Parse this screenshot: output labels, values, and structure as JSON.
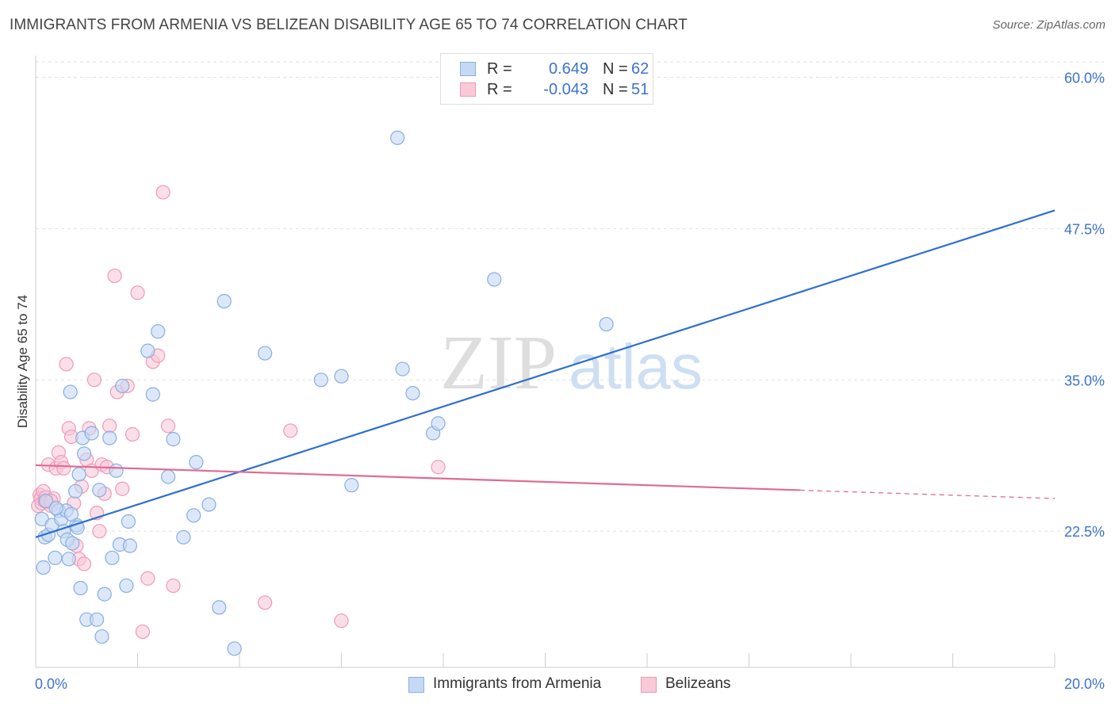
{
  "title": "IMMIGRANTS FROM ARMENIA VS BELIZEAN DISABILITY AGE 65 TO 74 CORRELATION CHART",
  "source": "Source: ZipAtlas.com",
  "watermark": {
    "zip": "ZIP",
    "atlas": "atlas"
  },
  "legend": {
    "r_label": "R =",
    "n_label": "N =",
    "series": [
      {
        "r": "0.649",
        "n": "62"
      },
      {
        "r": "-0.043",
        "n": "51"
      }
    ]
  },
  "bottom_legend": [
    "Immigrants from Armenia",
    "Belizeans"
  ],
  "colors": {
    "armenia_fill": "#c5d9f5",
    "armenia_stroke": "#89aee0",
    "armenia_line": "#2f6fce",
    "belize_fill": "#f9c9d8",
    "belize_stroke": "#ef9ab6",
    "belize_line": "#e06a94",
    "value_text": "#3d72cf",
    "grid": "#e2e2e2"
  },
  "chart_data": {
    "type": "scatter",
    "title": "IMMIGRANTS FROM ARMENIA VS BELIZEAN DISABILITY AGE 65 TO 74 CORRELATION CHART",
    "xlabel": "",
    "ylabel": "Disability Age 65 to 74",
    "xlim": [
      0,
      20
    ],
    "ylim": [
      11.25,
      61.8
    ],
    "x_tick_labels": [
      "0.0%",
      "20.0%"
    ],
    "y_ticks": [
      22.5,
      35.0,
      47.5,
      60.0
    ],
    "y_tick_labels": [
      "22.5%",
      "35.0%",
      "47.5%",
      "60.0%"
    ],
    "grid": true,
    "series": [
      {
        "name": "Immigrants from Armenia",
        "r": 0.649,
        "n": 62,
        "trend": {
          "x": [
            0,
            20
          ],
          "y": [
            22.0,
            49.0
          ],
          "dashed_from": null
        },
        "points": [
          [
            0.12,
            23.5
          ],
          [
            0.15,
            19.5
          ],
          [
            0.18,
            22.0
          ],
          [
            0.25,
            22.2
          ],
          [
            0.32,
            23.0
          ],
          [
            0.38,
            20.3
          ],
          [
            0.45,
            24.2
          ],
          [
            0.5,
            23.5
          ],
          [
            0.55,
            22.5
          ],
          [
            0.6,
            24.2
          ],
          [
            0.62,
            21.8
          ],
          [
            0.65,
            20.2
          ],
          [
            0.68,
            34.0
          ],
          [
            0.72,
            21.5
          ],
          [
            0.78,
            25.8
          ],
          [
            0.8,
            23.0
          ],
          [
            0.82,
            22.8
          ],
          [
            0.85,
            27.2
          ],
          [
            0.88,
            17.8
          ],
          [
            0.92,
            30.2
          ],
          [
            0.95,
            28.9
          ],
          [
            1.0,
            15.2
          ],
          [
            1.1,
            30.6
          ],
          [
            1.2,
            15.2
          ],
          [
            1.25,
            25.9
          ],
          [
            1.3,
            13.8
          ],
          [
            1.35,
            17.3
          ],
          [
            1.45,
            30.2
          ],
          [
            1.5,
            20.3
          ],
          [
            1.58,
            27.5
          ],
          [
            1.65,
            21.4
          ],
          [
            1.7,
            34.5
          ],
          [
            1.78,
            18.0
          ],
          [
            1.82,
            23.3
          ],
          [
            1.85,
            21.3
          ],
          [
            2.2,
            37.4
          ],
          [
            2.3,
            33.8
          ],
          [
            2.4,
            39.0
          ],
          [
            2.6,
            27.0
          ],
          [
            2.7,
            30.1
          ],
          [
            2.9,
            22.0
          ],
          [
            3.1,
            23.8
          ],
          [
            3.15,
            28.2
          ],
          [
            3.4,
            24.7
          ],
          [
            3.6,
            16.2
          ],
          [
            3.7,
            41.5
          ],
          [
            3.9,
            12.8
          ],
          [
            4.5,
            37.2
          ],
          [
            5.6,
            35.0
          ],
          [
            6.0,
            35.3
          ],
          [
            6.2,
            26.3
          ],
          [
            7.1,
            55.0
          ],
          [
            7.2,
            35.9
          ],
          [
            7.4,
            33.9
          ],
          [
            7.8,
            30.6
          ],
          [
            7.9,
            31.4
          ],
          [
            8.3,
            58.9
          ],
          [
            9.0,
            43.3
          ],
          [
            11.2,
            39.6
          ],
          [
            0.2,
            25.0
          ],
          [
            0.4,
            24.4
          ],
          [
            0.7,
            23.9
          ]
        ]
      },
      {
        "name": "Belizeans",
        "r": -0.043,
        "n": 51,
        "trend": {
          "x": [
            0,
            20
          ],
          "y": [
            27.95,
            25.2
          ],
          "dashed_from": 15.0
        },
        "points": [
          [
            0.05,
            24.6
          ],
          [
            0.08,
            25.5
          ],
          [
            0.1,
            25.2
          ],
          [
            0.12,
            24.8
          ],
          [
            0.15,
            25.8
          ],
          [
            0.18,
            25.0
          ],
          [
            0.2,
            25.3
          ],
          [
            0.22,
            24.9
          ],
          [
            0.25,
            28.0
          ],
          [
            0.3,
            24.6
          ],
          [
            0.35,
            25.2
          ],
          [
            0.4,
            27.7
          ],
          [
            0.45,
            29.0
          ],
          [
            0.5,
            28.2
          ],
          [
            0.55,
            27.7
          ],
          [
            0.6,
            36.3
          ],
          [
            0.65,
            31.0
          ],
          [
            0.7,
            30.3
          ],
          [
            0.75,
            24.8
          ],
          [
            0.8,
            21.3
          ],
          [
            0.85,
            20.2
          ],
          [
            0.9,
            26.2
          ],
          [
            0.95,
            19.8
          ],
          [
            1.0,
            28.4
          ],
          [
            1.05,
            31.0
          ],
          [
            1.1,
            27.5
          ],
          [
            1.15,
            35.0
          ],
          [
            1.2,
            24.0
          ],
          [
            1.25,
            22.5
          ],
          [
            1.3,
            28.0
          ],
          [
            1.35,
            25.6
          ],
          [
            1.4,
            27.8
          ],
          [
            1.45,
            31.2
          ],
          [
            1.55,
            43.6
          ],
          [
            1.6,
            34.0
          ],
          [
            1.7,
            26.0
          ],
          [
            1.8,
            34.5
          ],
          [
            1.9,
            30.5
          ],
          [
            2.0,
            42.2
          ],
          [
            2.1,
            14.2
          ],
          [
            2.2,
            18.6
          ],
          [
            2.3,
            36.5
          ],
          [
            2.4,
            37.0
          ],
          [
            2.5,
            50.5
          ],
          [
            2.6,
            31.2
          ],
          [
            2.7,
            18.0
          ],
          [
            4.5,
            16.6
          ],
          [
            5.0,
            30.8
          ],
          [
            6.0,
            15.1
          ],
          [
            7.9,
            27.8
          ],
          [
            0.3,
            25.0
          ]
        ]
      }
    ]
  }
}
